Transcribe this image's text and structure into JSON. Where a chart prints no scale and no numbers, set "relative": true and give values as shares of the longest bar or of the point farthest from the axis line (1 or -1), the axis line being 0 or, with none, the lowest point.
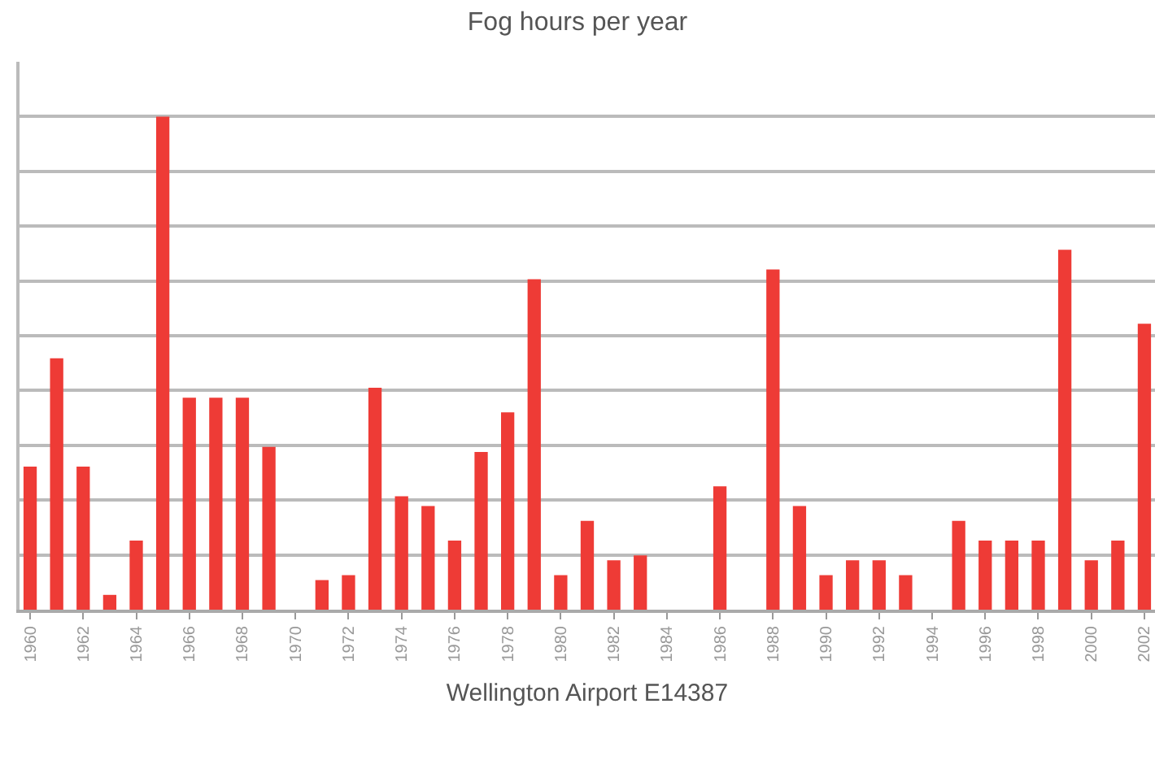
{
  "chart_data": {
    "type": "bar",
    "title": "Fog hours per year",
    "xlabel": "Wellington Airport E14387",
    "relative": true,
    "grid": "y",
    "color": "#ee3b36",
    "categories": [
      "1960",
      null,
      "1962",
      null,
      "1964",
      null,
      "1966",
      null,
      "1968",
      null,
      "1970",
      null,
      "1972",
      null,
      "1974",
      null,
      "1976",
      null,
      "1978",
      null,
      "1980",
      null,
      "1982",
      null,
      "1984",
      null,
      "1986",
      null,
      "1988",
      null,
      "1990",
      null,
      "1992",
      null,
      "1994",
      null,
      "1996",
      null,
      "1998",
      null,
      "2000",
      null,
      "2002"
    ],
    "values": [
      0.29,
      0.51,
      0.29,
      0.03,
      0.14,
      1.0,
      0.43,
      0.43,
      0.43,
      0.33,
      0,
      0.06,
      0.07,
      0.45,
      0.23,
      0.21,
      0.14,
      0.32,
      0.4,
      0.67,
      0.07,
      0.18,
      0.1,
      0.11,
      0,
      0,
      0.25,
      0,
      0.69,
      0.21,
      0.07,
      0.1,
      0.1,
      0.07,
      0,
      0.18,
      0.14,
      0.14,
      0.14,
      0.73,
      0.1,
      0.14,
      0.58
    ]
  }
}
